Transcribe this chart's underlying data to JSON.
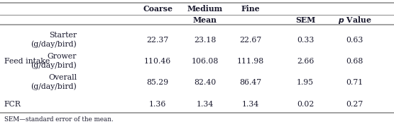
{
  "header1": {
    "Coarse": 0.4,
    "Medium": 0.52,
    "Fine": 0.635
  },
  "header2": {
    "Mean": 0.52,
    "SEM": 0.775,
    "p Value": 0.9
  },
  "col_x": {
    "label1": 0.01,
    "label2": 0.195,
    "coarse": 0.4,
    "medium": 0.52,
    "fine": 0.635,
    "sem": 0.775,
    "pval": 0.9
  },
  "rows": [
    {
      "label1": "Feed intake",
      "label2_line1": "Starter",
      "label2_line2": "(g/day/bird)",
      "coarse": "22.37",
      "medium": "23.18",
      "fine": "22.67",
      "sem": "0.33",
      "pval": "0.63"
    },
    {
      "label1": "",
      "label2_line1": "Grower",
      "label2_line2": "(g/day/bird)",
      "coarse": "110.46",
      "medium": "106.08",
      "fine": "111.98",
      "sem": "2.66",
      "pval": "0.68"
    },
    {
      "label1": "",
      "label2_line1": "Overall",
      "label2_line2": "(g/day/bird)",
      "coarse": "85.29",
      "medium": "82.40",
      "fine": "86.47",
      "sem": "1.95",
      "pval": "0.71"
    },
    {
      "label1": "FCR",
      "label2_line1": "",
      "label2_line2": "",
      "coarse": "1.36",
      "medium": "1.34",
      "fine": "1.34",
      "sem": "0.02",
      "pval": "0.27"
    }
  ],
  "footnote": "SEM—standard error of the mean.",
  "line_color": "#888888",
  "text_color": "#1a1a2e",
  "font_size": 7.8,
  "font_family": "DejaVu Serif"
}
